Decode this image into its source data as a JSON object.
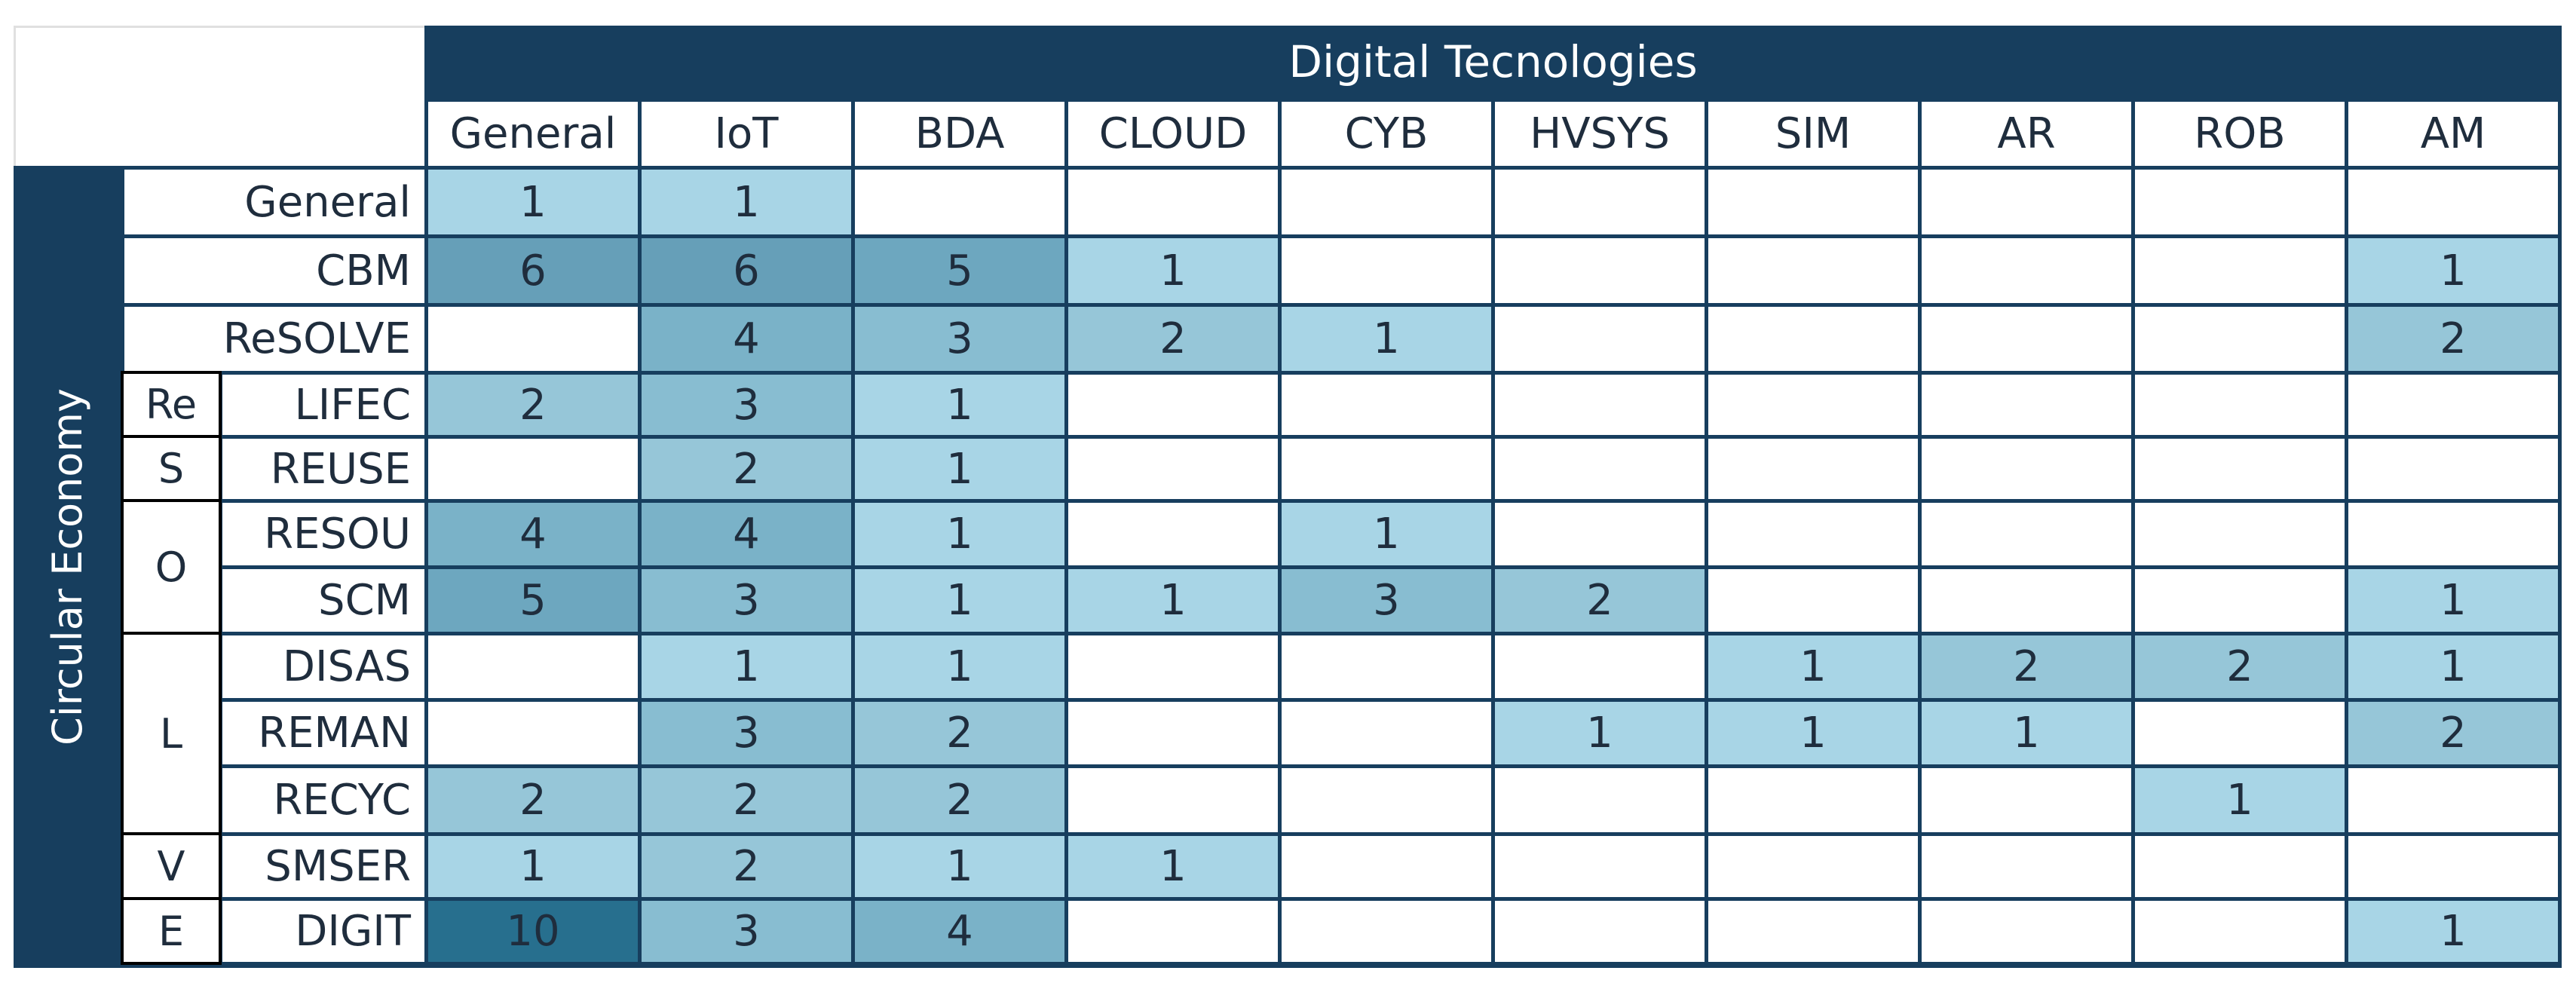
{
  "chart_data": {
    "type": "heatmap",
    "title": "Digital Tecnologies",
    "row_axis_label": "Circular Economy",
    "columns": [
      "General",
      "IoT",
      "BDA",
      "CLOUD",
      "CYB",
      "HVSYS",
      "SIM",
      "AR",
      "ROB",
      "AM"
    ],
    "rows": [
      "General",
      "CBM",
      "ReSOLVE",
      "LIFEC",
      "REUSE",
      "RESOU",
      "SCM",
      "DISAS",
      "REMAN",
      "RECYC",
      "SMSER",
      "DIGIT"
    ],
    "row_groups": [
      {
        "label": "Re",
        "rows": [
          "LIFEC"
        ]
      },
      {
        "label": "S",
        "rows": [
          "REUSE"
        ]
      },
      {
        "label": "O",
        "rows": [
          "RESOU",
          "SCM"
        ]
      },
      {
        "label": "L",
        "rows": [
          "DISAS",
          "REMAN",
          "RECYC"
        ]
      },
      {
        "label": "V",
        "rows": [
          "SMSER"
        ]
      },
      {
        "label": "E",
        "rows": [
          "DIGIT"
        ]
      }
    ],
    "values": [
      [
        1,
        1,
        null,
        null,
        null,
        null,
        null,
        null,
        null,
        null
      ],
      [
        6,
        6,
        5,
        1,
        null,
        null,
        null,
        null,
        null,
        1
      ],
      [
        null,
        4,
        3,
        2,
        1,
        null,
        null,
        null,
        null,
        2
      ],
      [
        2,
        3,
        1,
        null,
        null,
        null,
        null,
        null,
        null,
        null
      ],
      [
        null,
        2,
        1,
        null,
        null,
        null,
        null,
        null,
        null,
        null
      ],
      [
        4,
        4,
        1,
        null,
        1,
        null,
        null,
        null,
        null,
        null
      ],
      [
        5,
        3,
        1,
        1,
        3,
        2,
        null,
        null,
        null,
        1
      ],
      [
        null,
        1,
        1,
        null,
        null,
        null,
        1,
        2,
        2,
        1
      ],
      [
        null,
        3,
        2,
        null,
        null,
        1,
        1,
        1,
        null,
        2
      ],
      [
        2,
        2,
        2,
        null,
        null,
        null,
        null,
        null,
        1,
        null
      ],
      [
        1,
        2,
        1,
        1,
        null,
        null,
        null,
        null,
        null,
        null
      ],
      [
        10,
        3,
        4,
        null,
        null,
        null,
        null,
        null,
        null,
        1
      ]
    ],
    "color_scale": {
      "empty": "#ffffff",
      "1": "#a8d5e6",
      "2": "#96c6d8",
      "3": "#88bdd1",
      "4": "#7ab2c8",
      "5": "#6da7bf",
      "6": "#669fb8",
      "10": "#276f8e"
    },
    "frame_color": "#173e5e"
  }
}
